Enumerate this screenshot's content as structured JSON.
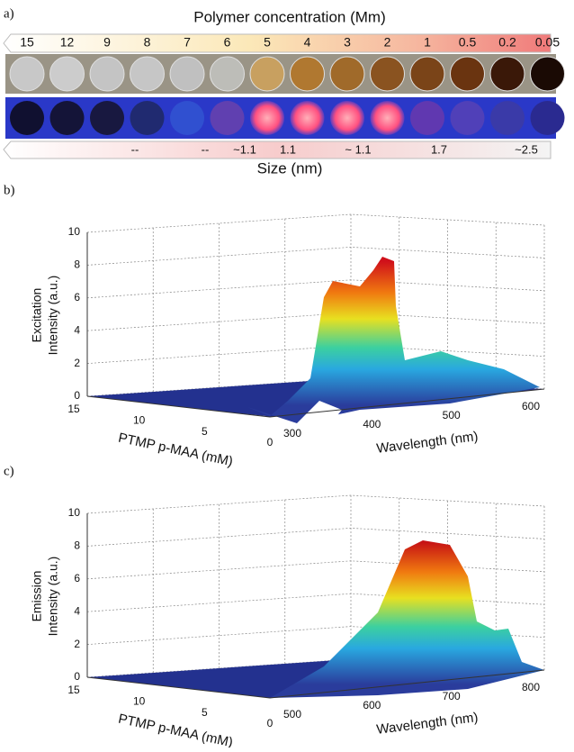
{
  "panel_a": {
    "label": "a)",
    "title": "Polymer concentration (Mm)",
    "concentrations": [
      "15",
      "12",
      "9",
      "8",
      "7",
      "6",
      "5",
      "4",
      "3",
      "2",
      "1",
      "0.5",
      "0.2",
      "0.05"
    ],
    "sizes": [
      "--",
      "--",
      "~1.1",
      "1.1",
      "~ 1.1",
      "1.7",
      "~2.5"
    ],
    "size_label": "Size (nm)"
  },
  "panel_b": {
    "label": "b)",
    "z_label": [
      "Excitation",
      "Intensity (a.u.)"
    ],
    "zticks": [
      "0",
      "2",
      "4",
      "6",
      "8",
      "10"
    ],
    "y_label": "PTMP p-MAA (mM)",
    "yticks": [
      "15",
      "10",
      "5",
      "0"
    ],
    "x_label": "Wavelength (nm)",
    "xticks": [
      "300",
      "400",
      "500",
      "600"
    ]
  },
  "panel_c": {
    "label": "c)",
    "z_label": [
      "Emission",
      "Intensity (a.u.)"
    ],
    "zticks": [
      "0",
      "2",
      "4",
      "6",
      "8",
      "10"
    ],
    "y_label": "PTMP p-MAA (mM)",
    "yticks": [
      "15",
      "10",
      "5",
      "0"
    ],
    "x_label": "Wavelength (nm)",
    "xticks": [
      "500",
      "600",
      "700",
      "800"
    ]
  }
}
